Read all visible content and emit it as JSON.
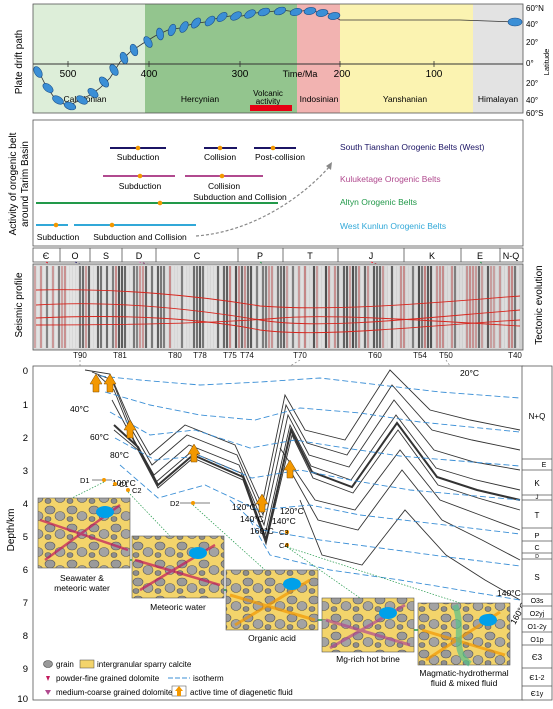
{
  "panel1": {
    "ylabel": "Plate drift path",
    "axis_title": "Time/Ma",
    "ticks": [
      "500",
      "400",
      "300",
      "200",
      "100"
    ],
    "lat_ticks": [
      "60°N",
      "40°",
      "20°",
      "0°",
      "20°",
      "40°",
      "60°S"
    ],
    "lat_label": "Latitude",
    "periods": [
      {
        "label": "Caledonian",
        "color": "#ddeed9"
      },
      {
        "label": "Hercynian",
        "color": "#93c58e"
      },
      {
        "label": "Volcanic activity",
        "color": "#93c58e"
      },
      {
        "label": "Indosinian",
        "color": "#f2b3b1"
      },
      {
        "label": "Yanshanian",
        "color": "#fbf3b1"
      },
      {
        "label": "Himalayan",
        "color": "#e3e3e3"
      }
    ],
    "volcanic_bar_color": "#e60012",
    "plate_color": "#3b8fd6"
  },
  "panel2": {
    "ylabel": "Activity of orogenic belt around Tarim Basin",
    "rows": [
      {
        "color": "#1b1464",
        "labels": [
          "Subduction",
          "Collision",
          "Post-collision"
        ],
        "legend": "South Tianshan Orogenic Belts (West)"
      },
      {
        "color": "#b14a8f",
        "labels": [
          "Subduction",
          "Collision"
        ],
        "legend": "Kuluketage Orogenic Belts"
      },
      {
        "color": "#22994a",
        "labels": [
          "Subduction and Collision"
        ],
        "legend": "Altyn Orogenic Belts"
      },
      {
        "color": "#31a8d8",
        "labels": [
          "Subduction",
          "Subduction and Collision"
        ],
        "legend": "West Kunlun Orogenic Belts"
      }
    ]
  },
  "panel3": {
    "ylabel": "Seismic profile",
    "right_label": "Tectonic evolution",
    "strata": [
      "Є",
      "O",
      "S",
      "D",
      "C",
      "P",
      "T",
      "J",
      "K",
      "E",
      "N-Q"
    ],
    "horizons": [
      "T90",
      "T81",
      "T80",
      "T78",
      "T75",
      "T74",
      "T70",
      "T60",
      "T54",
      "T50",
      "T40"
    ]
  },
  "panel4": {
    "ylabel": "Depth/km",
    "depth_ticks": [
      "0",
      "1",
      "2",
      "3",
      "4",
      "5",
      "6",
      "7",
      "8",
      "9",
      "10"
    ],
    "isotherms": [
      "20°C",
      "40°C",
      "60°C",
      "80°C",
      "100°C",
      "120°C",
      "140°C",
      "160°C",
      "120°C",
      "140°C",
      "160°C",
      "140°C",
      "160°C"
    ],
    "samples": [
      "D1",
      "C1",
      "C2",
      "D2",
      "C3",
      "C4"
    ],
    "column_units": [
      "N+Q",
      "E",
      "K",
      "J",
      "T",
      "P",
      "C",
      "D",
      "S",
      "O3s",
      "O2yj",
      "O1-2y",
      "O1p",
      "Є3",
      "Є1-2",
      "Є1y"
    ],
    "fluids": [
      "Seawater & meteoric water",
      "Meteoric water",
      "Organic acid",
      "Mg-rich hot brine",
      "Magmatic-hydrothermal fluid & mixed fluid"
    ],
    "legend": [
      "grain",
      "intergranular sparry calcite",
      "powder-fine grained dolomite",
      "isotherm",
      "medium-coarse grained dolomite",
      "active time of diagenetic fluid"
    ]
  }
}
